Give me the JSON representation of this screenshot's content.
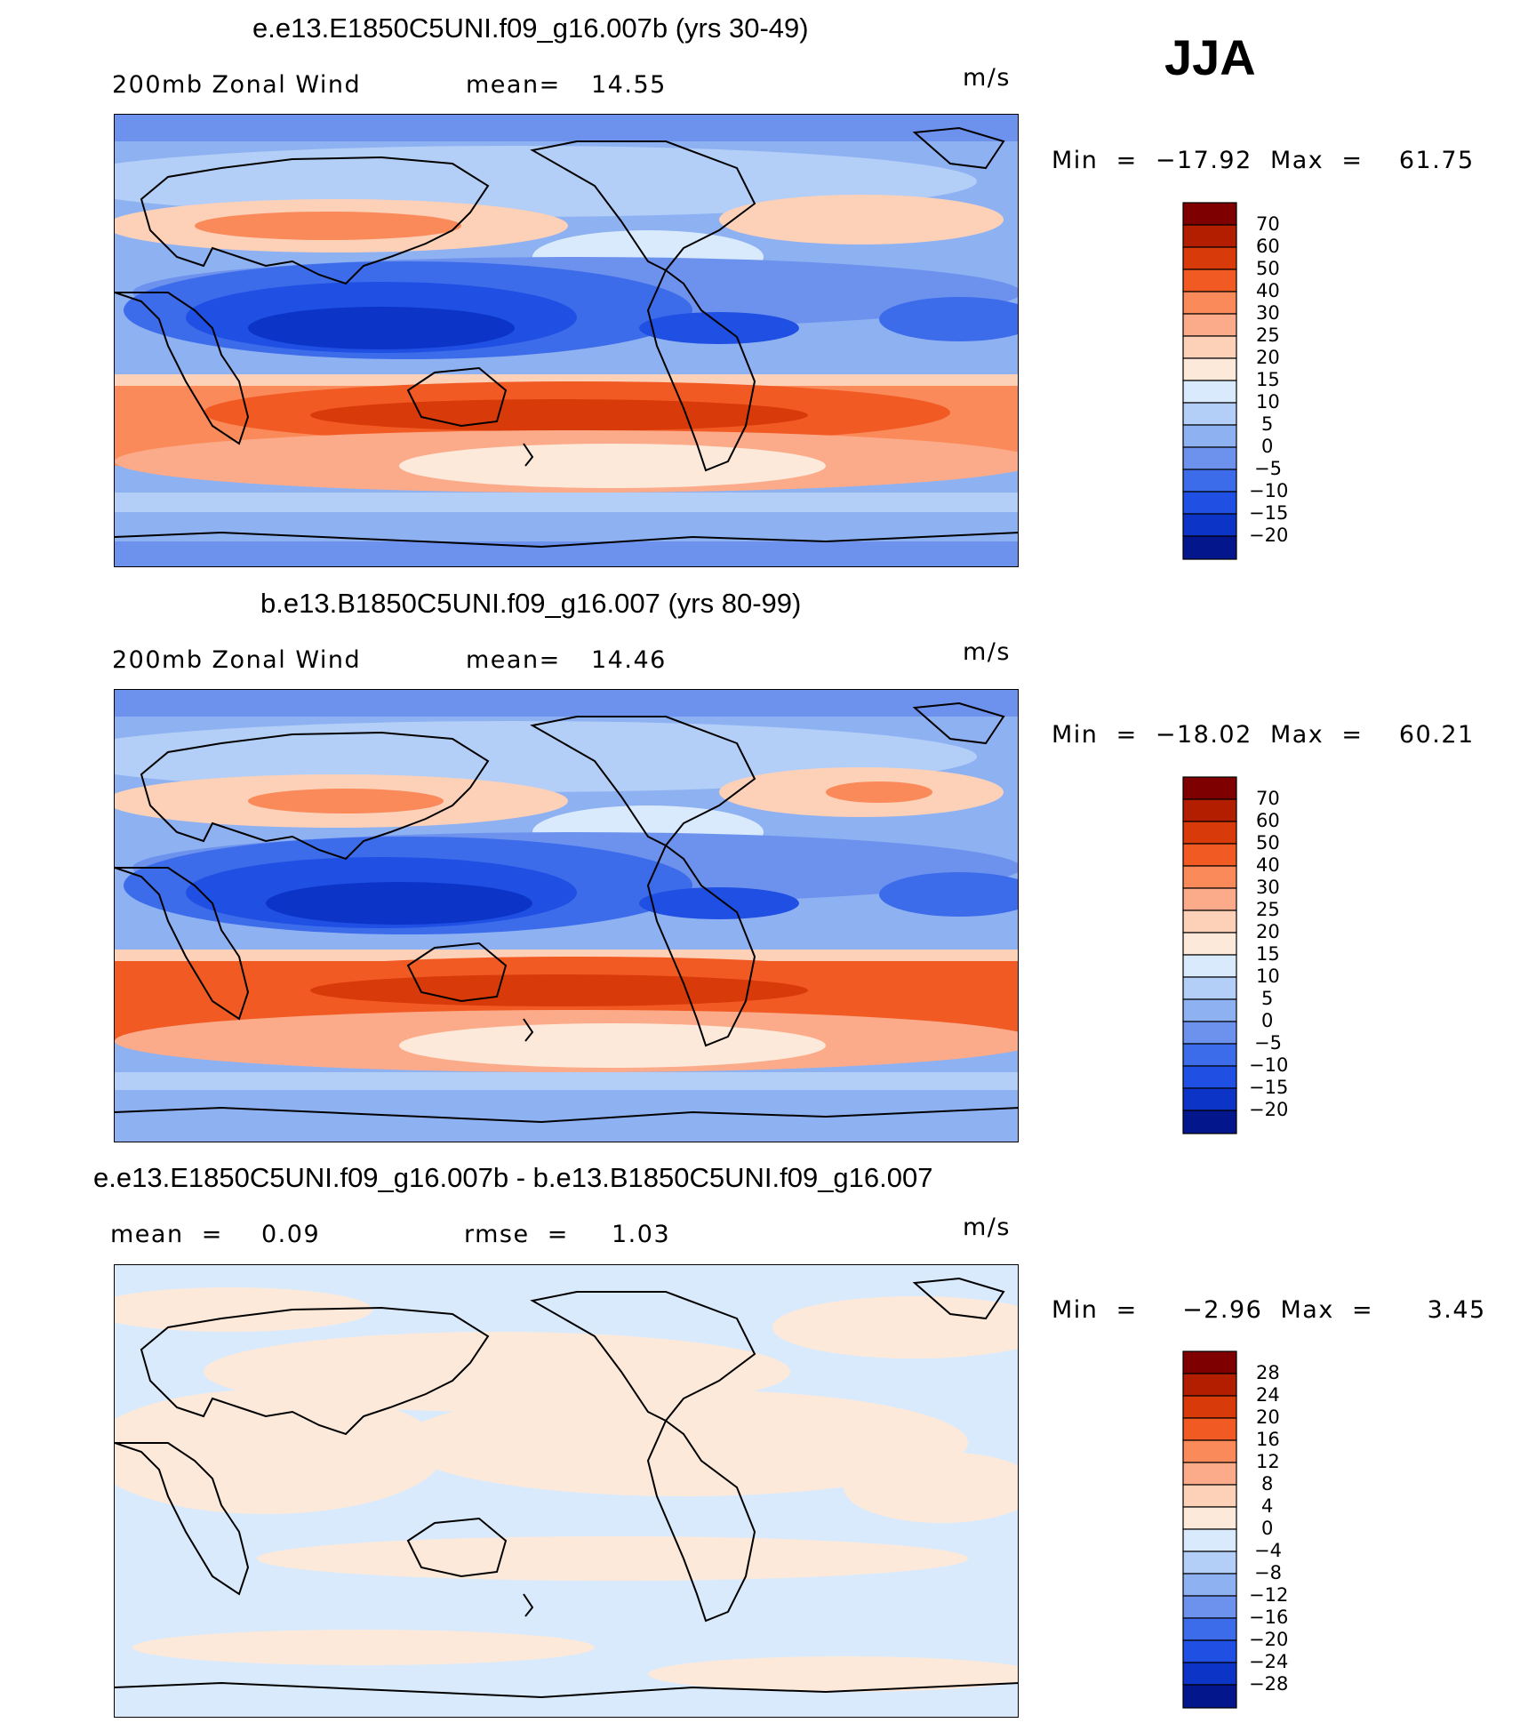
{
  "season": "JJA",
  "panels": [
    {
      "title": "e.e13.E1850C5UNI.f09_g16.007b (yrs 30-49)",
      "variable": "200mb Zonal Wind",
      "stat1_label": "mean=",
      "stat1_value": "14.55",
      "stat2_label": "",
      "stat2_value": "",
      "units": "m/s",
      "minmax": "Min  =  −17.92  Max  =    61.75",
      "colorbar_levels": [
        "70",
        "60",
        "50",
        "40",
        "30",
        "25",
        "20",
        "15",
        "10",
        "5",
        "0",
        "−5",
        "−10",
        "−15",
        "−20"
      ]
    },
    {
      "title": "b.e13.B1850C5UNI.f09_g16.007 (yrs 80-99)",
      "variable": "200mb Zonal Wind",
      "stat1_label": "mean=",
      "stat1_value": "14.46",
      "stat2_label": "",
      "stat2_value": "",
      "units": "m/s",
      "minmax": "Min  =  −18.02  Max  =    60.21",
      "colorbar_levels": [
        "70",
        "60",
        "50",
        "40",
        "30",
        "25",
        "20",
        "15",
        "10",
        "5",
        "0",
        "−5",
        "−10",
        "−15",
        "−20"
      ]
    },
    {
      "title": "e.e13.E1850C5UNI.f09_g16.007b - b.e13.B1850C5UNI.f09_g16.007",
      "variable": "",
      "stat1_label": "mean  =",
      "stat1_value": "0.09",
      "stat2_label": "rmse  =",
      "stat2_value": "1.03",
      "units": "m/s",
      "minmax": "Min  =     −2.96  Max  =      3.45",
      "colorbar_levels": [
        "28",
        "24",
        "20",
        "16",
        "12",
        "8",
        "4",
        "0",
        "−4",
        "−8",
        "−12",
        "−16",
        "−20",
        "−24",
        "−28"
      ]
    }
  ],
  "colors": {
    "scale": [
      "#7f0000",
      "#b31d00",
      "#d93a0a",
      "#f25a24",
      "#fa8a5a",
      "#fcab8a",
      "#fdd0b8",
      "#fde9da",
      "#d9eafc",
      "#b3cff7",
      "#8eb1f2",
      "#6d92ee",
      "#3d6ceb",
      "#1f4fe3",
      "#0c35c8",
      "#03168c"
    ],
    "land_outline": "#000000"
  }
}
